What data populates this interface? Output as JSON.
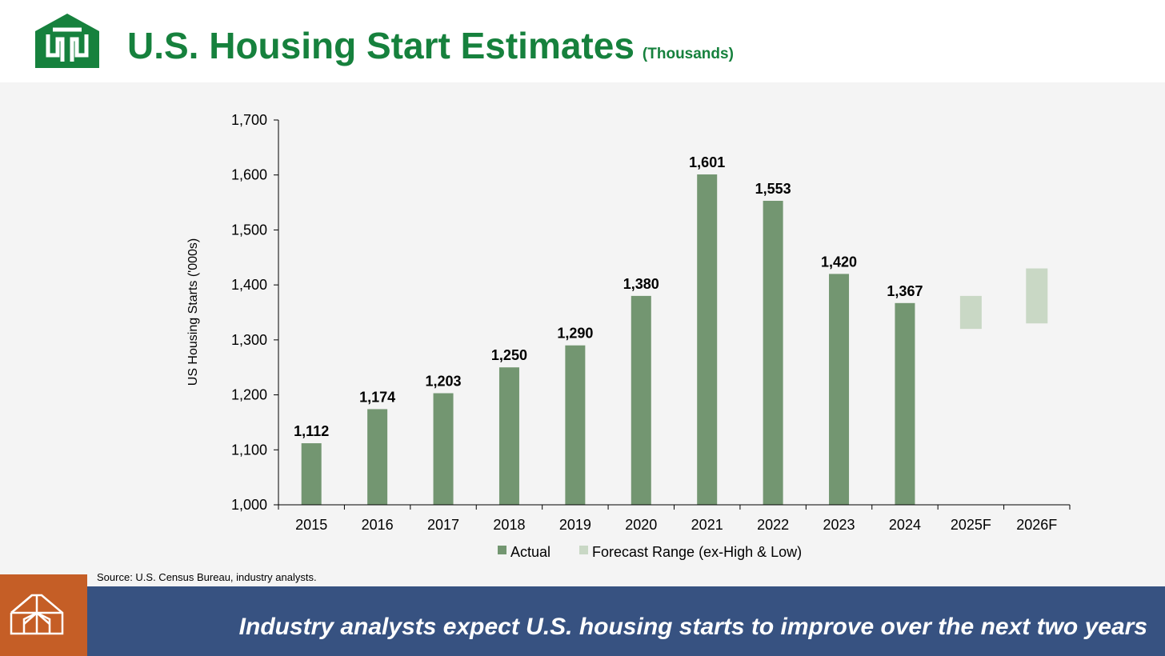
{
  "header": {
    "title": "U.S. Housing Start Estimates",
    "title_unit": "(Thousands)",
    "logo_icon": "company-logo-icon"
  },
  "colors": {
    "brand_green": "#16813d",
    "actual_bar": "#739671",
    "forecast_bar": "#c9d8c5",
    "footer_blue": "#375281",
    "footer_orange": "#c55e26"
  },
  "chart_data": {
    "type": "bar",
    "title": "U.S. Housing Start Estimates",
    "ylabel": "US Housing Starts ('000s)",
    "xlabel": "",
    "ylim": [
      1000,
      1700
    ],
    "yticks": [
      1000,
      1100,
      1200,
      1300,
      1400,
      1500,
      1600,
      1700
    ],
    "ytick_labels": [
      "1,000",
      "1,100",
      "1,200",
      "1,300",
      "1,400",
      "1,500",
      "1,600",
      "1,700"
    ],
    "categories": [
      "2015",
      "2016",
      "2017",
      "2018",
      "2019",
      "2020",
      "2021",
      "2022",
      "2023",
      "2024",
      "2025F",
      "2026F"
    ],
    "series": [
      {
        "name": "Actual",
        "values": [
          1112,
          1174,
          1203,
          1250,
          1290,
          1380,
          1601,
          1553,
          1420,
          1367,
          null,
          null
        ],
        "labels": [
          "1,112",
          "1,174",
          "1,203",
          "1,250",
          "1,290",
          "1,380",
          "1,601",
          "1,553",
          "1,420",
          "1,367",
          null,
          null
        ]
      },
      {
        "name": "Forecast Range (ex-High & Low)",
        "ranges": [
          null,
          null,
          null,
          null,
          null,
          null,
          null,
          null,
          null,
          null,
          [
            1320,
            1380
          ],
          [
            1330,
            1430
          ]
        ]
      }
    ],
    "legend": [
      "Actual",
      "Forecast Range (ex-High & Low)"
    ],
    "legend_position": "bottom",
    "grid": false
  },
  "source": "Source: U.S. Census Bureau, industry analysts.",
  "footer": {
    "icon": "greenhouse-icon",
    "message": "Industry analysts expect U.S. housing starts to improve over the next two years"
  }
}
